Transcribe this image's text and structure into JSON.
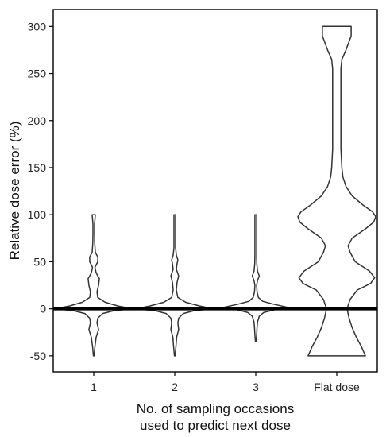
{
  "chart_data": {
    "type": "violin",
    "xlabel_lines": [
      "No. of sampling occasions",
      "used to predict next dose"
    ],
    "ylabel": "Relative dose error (%)",
    "categories": [
      "1",
      "2",
      "3",
      "Flat dose"
    ],
    "yticks": [
      -50,
      0,
      50,
      100,
      150,
      200,
      250,
      300
    ],
    "ylim": [
      -67,
      318
    ],
    "reference_line_y": 0,
    "grid": false,
    "series": [
      {
        "category": "1",
        "range": [
          -50,
          100
        ],
        "density_profile": [
          [
            -50,
            0.4
          ],
          [
            -40,
            1.5
          ],
          [
            -30,
            3
          ],
          [
            -22,
            6
          ],
          [
            -15,
            4
          ],
          [
            -10,
            5
          ],
          [
            -5,
            11
          ],
          [
            -2,
            25
          ],
          [
            0,
            48
          ],
          [
            3,
            30
          ],
          [
            7,
            14
          ],
          [
            12,
            5
          ],
          [
            18,
            4
          ],
          [
            25,
            6
          ],
          [
            32,
            7
          ],
          [
            38,
            3
          ],
          [
            44,
            1.5
          ],
          [
            50,
            5
          ],
          [
            55,
            5
          ],
          [
            60,
            2
          ],
          [
            70,
            1.2
          ],
          [
            80,
            1
          ],
          [
            90,
            1
          ],
          [
            95,
            1.5
          ],
          [
            100,
            2
          ]
        ]
      },
      {
        "category": "2",
        "range": [
          -50,
          100
        ],
        "density_profile": [
          [
            -50,
            0.4
          ],
          [
            -40,
            1.5
          ],
          [
            -30,
            2.5
          ],
          [
            -22,
            5
          ],
          [
            -15,
            4
          ],
          [
            -10,
            5
          ],
          [
            -5,
            11
          ],
          [
            -2,
            25
          ],
          [
            0,
            50
          ],
          [
            3,
            32
          ],
          [
            7,
            14
          ],
          [
            12,
            4
          ],
          [
            20,
            2
          ],
          [
            28,
            3
          ],
          [
            35,
            5
          ],
          [
            42,
            2
          ],
          [
            48,
            3
          ],
          [
            52,
            4
          ],
          [
            57,
            2
          ],
          [
            65,
            1
          ],
          [
            80,
            1
          ],
          [
            100,
            1
          ]
        ]
      },
      {
        "category": "3",
        "range": [
          -35,
          100
        ],
        "density_profile": [
          [
            -35,
            0.4
          ],
          [
            -28,
            1
          ],
          [
            -20,
            1.5
          ],
          [
            -14,
            2
          ],
          [
            -8,
            4
          ],
          [
            -4,
            9
          ],
          [
            -1,
            22
          ],
          [
            0,
            45
          ],
          [
            2,
            35
          ],
          [
            5,
            20
          ],
          [
            8,
            8
          ],
          [
            12,
            3
          ],
          [
            18,
            1.5
          ],
          [
            25,
            1
          ],
          [
            30,
            2
          ],
          [
            35,
            4
          ],
          [
            40,
            2
          ],
          [
            48,
            1.2
          ],
          [
            55,
            1
          ],
          [
            65,
            1
          ],
          [
            100,
            1
          ]
        ]
      },
      {
        "category": "Flat dose",
        "range": [
          -50,
          300
        ],
        "density_profile": [
          [
            -50,
            28
          ],
          [
            -40,
            24
          ],
          [
            -30,
            19
          ],
          [
            -20,
            15
          ],
          [
            -10,
            12
          ],
          [
            0,
            10
          ],
          [
            10,
            13
          ],
          [
            20,
            20
          ],
          [
            27,
            33
          ],
          [
            33,
            37
          ],
          [
            40,
            32
          ],
          [
            50,
            18
          ],
          [
            60,
            13
          ],
          [
            67,
            11
          ],
          [
            75,
            15
          ],
          [
            85,
            28
          ],
          [
            92,
            36
          ],
          [
            98,
            38
          ],
          [
            103,
            35
          ],
          [
            110,
            26
          ],
          [
            120,
            15
          ],
          [
            130,
            9
          ],
          [
            140,
            6
          ],
          [
            150,
            5
          ],
          [
            170,
            4
          ],
          [
            200,
            4
          ],
          [
            230,
            4
          ],
          [
            255,
            4
          ],
          [
            265,
            5
          ],
          [
            275,
            9
          ],
          [
            290,
            14
          ],
          [
            300,
            14
          ]
        ]
      }
    ]
  }
}
